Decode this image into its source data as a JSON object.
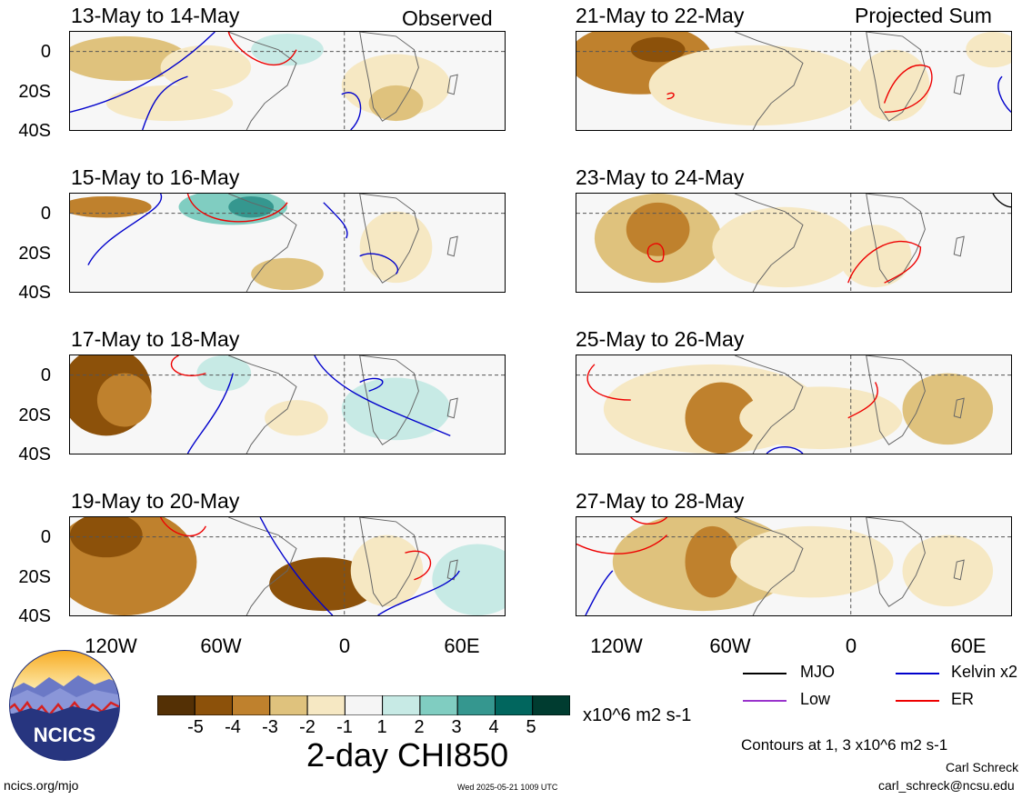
{
  "header": {
    "observed_label": "Observed",
    "projected_label": "Projected Sum"
  },
  "axis": {
    "y_ticks": [
      "0",
      "20S",
      "40S"
    ],
    "x_ticks": [
      "120W",
      "60W",
      "0",
      "60E"
    ]
  },
  "panels": [
    {
      "title": "13-May to 14-May",
      "column": "left",
      "row": 0
    },
    {
      "title": "15-May to 16-May",
      "column": "left",
      "row": 1
    },
    {
      "title": "17-May to 18-May",
      "column": "left",
      "row": 2
    },
    {
      "title": "19-May to 20-May",
      "column": "left",
      "row": 3
    },
    {
      "title": "21-May to 22-May",
      "column": "right",
      "row": 0
    },
    {
      "title": "23-May to 24-May",
      "column": "right",
      "row": 1
    },
    {
      "title": "25-May to 26-May",
      "column": "right",
      "row": 2
    },
    {
      "title": "27-May to 28-May",
      "column": "right",
      "row": 3
    }
  ],
  "colorbar": {
    "labels": [
      "-5",
      "-4",
      "-3",
      "-2",
      "-1",
      "1",
      "2",
      "3",
      "4",
      "5"
    ],
    "colors": [
      "#543005",
      "#8c510a",
      "#bf812d",
      "#dfc27d",
      "#f6e8c3",
      "#f5f5f5",
      "#c7eae5",
      "#80cdc1",
      "#35978f",
      "#01665e",
      "#003c30"
    ],
    "units": "x10^6 m2 s-1",
    "title": "2-day CHI850"
  },
  "legend": {
    "items": [
      {
        "label": "MJO",
        "color": "#000000"
      },
      {
        "label": "Kelvin x2",
        "color": "#0000cc"
      },
      {
        "label": "Low",
        "color": "#9933cc"
      },
      {
        "label": "ER",
        "color": "#ee0000"
      }
    ],
    "contours_note": "Contours at 1, 3 x10^6 m2 s-1"
  },
  "logo": {
    "text": "NCICS"
  },
  "footer": {
    "website": "ncics.org/mjo",
    "timestamp": "Wed 2025-05-21 1009 UTC",
    "author": "Carl Schreck",
    "email": "carl_schreck@ncsu.edu"
  }
}
